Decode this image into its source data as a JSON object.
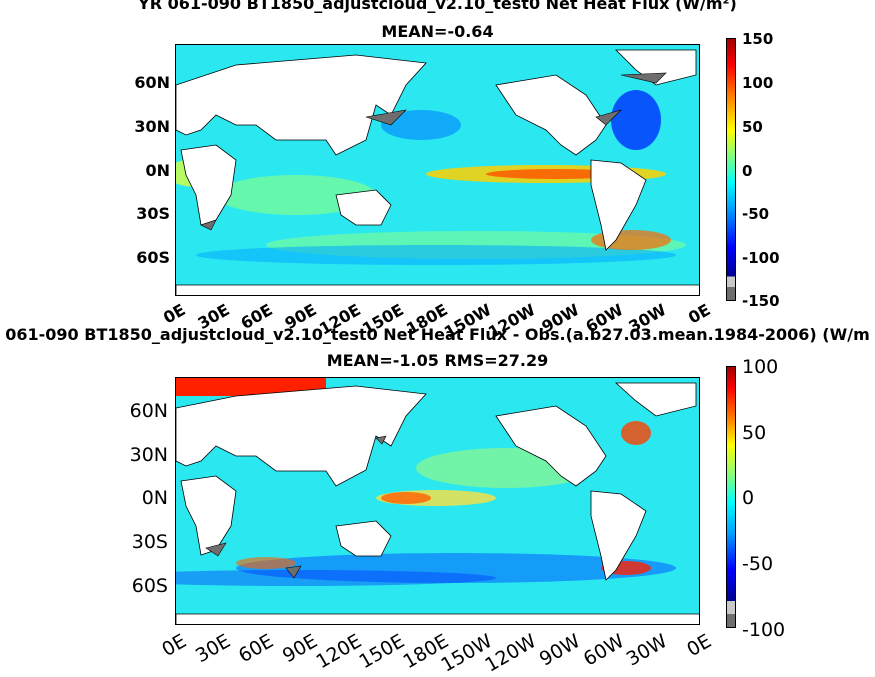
{
  "panel1": {
    "title_line1": "YR 061-090 BT1850_adjustcloud_v2.10_test0  Net Heat Flux (W/m²)",
    "title_line2": "MEAN=-0.64",
    "y_ticks": [
      "60N",
      "30N",
      "0N",
      "30S",
      "60S"
    ],
    "x_ticks": [
      "0E",
      "30E",
      "60E",
      "90E",
      "120E",
      "150E",
      "180E",
      "150W",
      "120W",
      "90W",
      "60W",
      "30W",
      "0E"
    ],
    "colorbar_labels": [
      "150",
      "100",
      "50",
      "0",
      "-50",
      "-100",
      "-150"
    ]
  },
  "panel2": {
    "title_line1": "061-090 BT1850_adjustcloud_v2.10_test0  Net Heat Flux - Obs.(a.b27.03.mean.1984-2006) (W/m",
    "title_line2": "MEAN=-1.05 RMS=27.29",
    "y_ticks": [
      "60N",
      "30N",
      "0N",
      "30S",
      "60S"
    ],
    "x_ticks": [
      "0E",
      "30E",
      "60E",
      "90E",
      "120E",
      "150E",
      "180E",
      "150W",
      "120W",
      "90W",
      "60W",
      "30W",
      "0E"
    ],
    "colorbar_labels": [
      "100",
      "50",
      "0",
      "-50",
      "-100"
    ]
  },
  "colors": {
    "ocean_base": "#2be8f0",
    "land": "#ffffff",
    "sea_ice": "#6e6e6e",
    "colormap": [
      "#00008f",
      "#0000ff",
      "#00a0ff",
      "#00ffff",
      "#80ff80",
      "#ffff00",
      "#ff8000",
      "#ff0000",
      "#800000"
    ]
  }
}
